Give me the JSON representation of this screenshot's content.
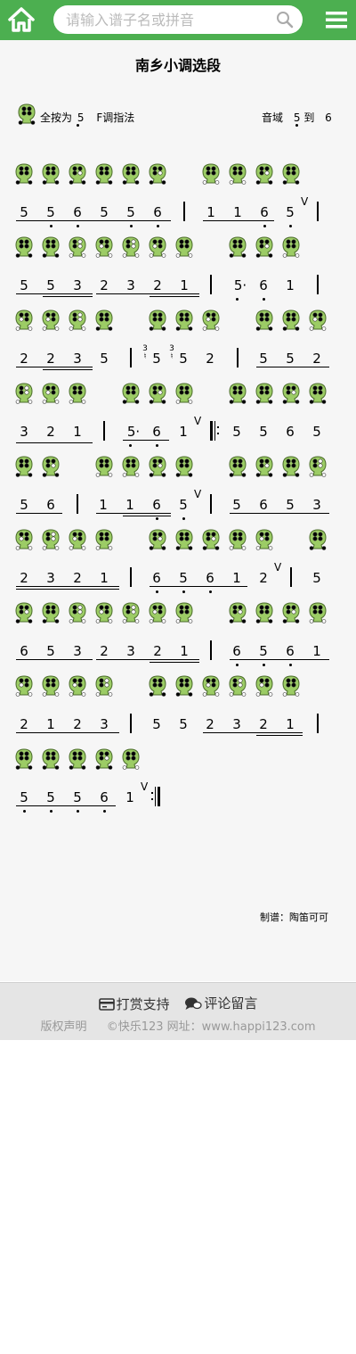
{
  "header": {
    "search_placeholder": "请输入谱子名或拼音"
  },
  "score": {
    "title": "南乡小调选段",
    "fingering_label": "全按为",
    "fingering_note": "5",
    "key_label": "F调指法",
    "range_label": "音域",
    "range_low": "5",
    "range_to": "到",
    "range_high": "6",
    "credit": "制谱：陶笛可可"
  },
  "lines": [
    {
      "o": [
        [
          17,
          "f5"
        ],
        [
          47,
          "f5"
        ],
        [
          77,
          "f6"
        ],
        [
          107,
          "f5"
        ],
        [
          137,
          "f5"
        ],
        [
          167,
          "f6"
        ],
        [
          227,
          "f1"
        ],
        [
          257,
          "f1"
        ],
        [
          287,
          "f6"
        ],
        [
          317,
          "f5"
        ]
      ],
      "n": [
        [
          27,
          "5",
          0,
          0
        ],
        [
          57,
          "5",
          -1,
          0
        ],
        [
          87,
          "6",
          -1,
          0
        ],
        [
          117,
          "5",
          0,
          0
        ],
        [
          147,
          "5",
          -1,
          0
        ],
        [
          177,
          "6",
          -1,
          0
        ],
        [
          237,
          "1",
          0,
          0
        ],
        [
          267,
          "1",
          0,
          0
        ],
        [
          297,
          "6",
          -1,
          0
        ],
        [
          326,
          "5",
          -1,
          0
        ]
      ],
      "u": [
        [
          18,
          192,
          1
        ],
        [
          48,
          192,
          1
        ],
        [
          108,
          192,
          1
        ],
        [
          138,
          192,
          1
        ],
        [
          228,
          308,
          1
        ],
        [
          258,
          308,
          1
        ]
      ],
      "b": [
        206,
        356
      ],
      "br": [
        338
      ]
    },
    {
      "o": [
        [
          17,
          "f5"
        ],
        [
          47,
          "f5"
        ],
        [
          77,
          "f3"
        ],
        [
          107,
          "f2"
        ],
        [
          137,
          "f3"
        ],
        [
          167,
          "f2"
        ],
        [
          197,
          "f1"
        ],
        [
          257,
          "f5"
        ],
        [
          287,
          "f6"
        ],
        [
          317,
          "f1"
        ]
      ],
      "n": [
        [
          27,
          "5",
          0,
          0
        ],
        [
          57,
          "5",
          0,
          0
        ],
        [
          87,
          "3",
          0,
          0
        ],
        [
          117,
          "2",
          0,
          0
        ],
        [
          147,
          "3",
          0,
          0
        ],
        [
          177,
          "2",
          0,
          0
        ],
        [
          207,
          "1",
          0,
          0
        ],
        [
          266,
          "5·",
          -1,
          0
        ],
        [
          296,
          "6",
          -1,
          0
        ],
        [
          326,
          "1",
          0,
          0
        ]
      ],
      "u": [
        [
          18,
          104,
          1
        ],
        [
          48,
          104,
          2
        ],
        [
          108,
          224,
          1
        ],
        [
          168,
          224,
          2
        ]
      ],
      "b": [
        236,
        356
      ],
      "br": []
    },
    {
      "o": [
        [
          17,
          "f2"
        ],
        [
          47,
          "f2"
        ],
        [
          77,
          "f3"
        ],
        [
          107,
          "f5"
        ],
        [
          167,
          "f5"
        ],
        [
          197,
          "f5"
        ],
        [
          227,
          "f2"
        ],
        [
          287,
          "f5"
        ],
        [
          317,
          "f5"
        ],
        [
          347,
          "f2"
        ]
      ],
      "n": [
        [
          27,
          "2",
          0,
          0
        ],
        [
          57,
          "2",
          0,
          0
        ],
        [
          87,
          "3",
          0,
          0
        ],
        [
          117,
          "5",
          0,
          0
        ],
        [
          176,
          "5",
          0,
          0
        ],
        [
          206,
          "5",
          0,
          0
        ],
        [
          236,
          "2",
          0,
          0
        ],
        [
          296,
          "5",
          0,
          0
        ],
        [
          326,
          "5",
          0,
          0
        ],
        [
          356,
          "2",
          0,
          0
        ]
      ],
      "u": [
        [
          18,
          104,
          1
        ],
        [
          48,
          104,
          2
        ],
        [
          288,
          370,
          1
        ]
      ],
      "b": [
        146,
        266
      ],
      "br": [],
      "g": [
        [
          163,
          "3"
        ],
        [
          193,
          "3"
        ]
      ]
    },
    {
      "o": [
        [
          17,
          "f3"
        ],
        [
          47,
          "f2"
        ],
        [
          77,
          "f1"
        ],
        [
          137,
          "f5"
        ],
        [
          167,
          "f6"
        ],
        [
          197,
          "f1"
        ],
        [
          257,
          "f5"
        ],
        [
          287,
          "f5"
        ],
        [
          317,
          "f6"
        ],
        [
          347,
          "f5"
        ]
      ],
      "n": [
        [
          27,
          "3",
          0,
          0
        ],
        [
          57,
          "2",
          0,
          0
        ],
        [
          87,
          "1",
          0,
          0
        ],
        [
          146,
          "5·",
          -1,
          0
        ],
        [
          176,
          "6",
          -1,
          0
        ],
        [
          206,
          "1",
          0,
          0
        ],
        [
          266,
          "5",
          0,
          0
        ],
        [
          296,
          "5",
          0,
          0
        ],
        [
          326,
          "6",
          0,
          0
        ],
        [
          356,
          "5",
          0,
          0
        ]
      ],
      "u": [
        [
          18,
          104,
          2
        ],
        [
          138,
          190,
          1
        ]
      ],
      "b": [
        116,
        236
      ],
      "br": [
        218
      ],
      "rep": [
        236
      ]
    },
    {
      "o": [
        [
          17,
          "f5"
        ],
        [
          47,
          "f6"
        ],
        [
          107,
          "f1"
        ],
        [
          137,
          "f1"
        ],
        [
          167,
          "f6"
        ],
        [
          197,
          "f5"
        ],
        [
          257,
          "f5"
        ],
        [
          287,
          "f6"
        ],
        [
          317,
          "f5"
        ],
        [
          347,
          "f3"
        ]
      ],
      "n": [
        [
          27,
          "5",
          0,
          0
        ],
        [
          57,
          "6",
          0,
          0
        ],
        [
          116,
          "1",
          0,
          0
        ],
        [
          146,
          "1",
          0,
          0
        ],
        [
          176,
          "6",
          -1,
          0
        ],
        [
          206,
          "5",
          -1,
          0
        ],
        [
          266,
          "5",
          0,
          0
        ],
        [
          296,
          "6",
          0,
          0
        ],
        [
          326,
          "5",
          0,
          0
        ],
        [
          356,
          "3",
          0,
          0
        ]
      ],
      "u": [
        [
          18,
          70,
          1
        ],
        [
          108,
          192,
          1
        ],
        [
          138,
          192,
          2
        ],
        [
          258,
          370,
          1
        ]
      ],
      "b": [
        86,
        236
      ],
      "br": [
        218
      ]
    },
    {
      "o": [
        [
          17,
          "f2"
        ],
        [
          47,
          "f3"
        ],
        [
          77,
          "f2"
        ],
        [
          107,
          "f1"
        ],
        [
          167,
          "f6"
        ],
        [
          197,
          "f5"
        ],
        [
          227,
          "f6"
        ],
        [
          257,
          "f1"
        ],
        [
          287,
          "f2"
        ],
        [
          347,
          "f5"
        ]
      ],
      "n": [
        [
          27,
          "2",
          0,
          0
        ],
        [
          57,
          "3",
          0,
          0
        ],
        [
          87,
          "2",
          0,
          0
        ],
        [
          117,
          "1",
          0,
          0
        ],
        [
          176,
          "6",
          -1,
          0
        ],
        [
          206,
          "5",
          -1,
          0
        ],
        [
          236,
          "6",
          -1,
          0
        ],
        [
          266,
          "1",
          0,
          0
        ],
        [
          296,
          "2",
          0,
          0
        ],
        [
          356,
          "5",
          0,
          0
        ]
      ],
      "u": [
        [
          18,
          134,
          1
        ],
        [
          18,
          134,
          2
        ],
        [
          168,
          278,
          1
        ]
      ],
      "b": [
        146,
        326
      ],
      "br": [
        308
      ]
    },
    {
      "o": [
        [
          17,
          "f6"
        ],
        [
          47,
          "f5"
        ],
        [
          77,
          "f3"
        ],
        [
          107,
          "f2"
        ],
        [
          137,
          "f3"
        ],
        [
          167,
          "f2"
        ],
        [
          197,
          "f1"
        ],
        [
          257,
          "f6"
        ],
        [
          287,
          "f5"
        ],
        [
          317,
          "f6"
        ],
        [
          347,
          "f1"
        ]
      ],
      "n": [
        [
          27,
          "6",
          0,
          0
        ],
        [
          57,
          "5",
          0,
          0
        ],
        [
          87,
          "3",
          0,
          0
        ],
        [
          117,
          "2",
          0,
          0
        ],
        [
          147,
          "3",
          0,
          0
        ],
        [
          177,
          "2",
          0,
          0
        ],
        [
          207,
          "1",
          0,
          0
        ],
        [
          266,
          "6",
          -1,
          0
        ],
        [
          296,
          "5",
          -1,
          0
        ],
        [
          326,
          "6",
          -1,
          0
        ],
        [
          356,
          "1",
          0,
          0
        ]
      ],
      "u": [
        [
          18,
          104,
          1
        ],
        [
          108,
          224,
          1
        ],
        [
          168,
          224,
          2
        ],
        [
          258,
          370,
          1
        ]
      ],
      "b": [
        236
      ],
      "br": []
    },
    {
      "o": [
        [
          17,
          "f2"
        ],
        [
          47,
          "f1"
        ],
        [
          77,
          "f2"
        ],
        [
          107,
          "f3"
        ],
        [
          167,
          "f5"
        ],
        [
          197,
          "f5"
        ],
        [
          227,
          "f2"
        ],
        [
          257,
          "f3"
        ],
        [
          287,
          "f2"
        ],
        [
          317,
          "f1"
        ]
      ],
      "n": [
        [
          27,
          "2",
          0,
          0
        ],
        [
          57,
          "1",
          0,
          0
        ],
        [
          87,
          "2",
          0,
          0
        ],
        [
          117,
          "3",
          0,
          0
        ],
        [
          176,
          "5",
          0,
          0
        ],
        [
          206,
          "5",
          0,
          0
        ],
        [
          236,
          "2",
          0,
          0
        ],
        [
          266,
          "3",
          0,
          0
        ],
        [
          296,
          "2",
          0,
          0
        ],
        [
          326,
          "1",
          0,
          0
        ]
      ],
      "u": [
        [
          18,
          134,
          1
        ],
        [
          228,
          340,
          1
        ],
        [
          288,
          340,
          2
        ]
      ],
      "b": [
        146,
        356
      ],
      "br": []
    },
    {
      "o": [
        [
          17,
          "f5"
        ],
        [
          47,
          "f5"
        ],
        [
          77,
          "f5"
        ],
        [
          107,
          "f6"
        ],
        [
          137,
          "f1"
        ]
      ],
      "n": [
        [
          27,
          "5",
          -1,
          0
        ],
        [
          57,
          "5",
          -1,
          0
        ],
        [
          87,
          "5",
          -1,
          0
        ],
        [
          117,
          "6",
          -1,
          0
        ],
        [
          146,
          "1",
          0,
          0
        ]
      ],
      "u": [
        [
          18,
          130,
          1
        ]
      ],
      "b": [],
      "br": [
        158
      ],
      "end": [
        170
      ]
    }
  ],
  "footer": {
    "reward": "打赏支持",
    "comment": "评论留言",
    "copyright": "版权声明",
    "site": "©快乐123 网址：www.happi123.com"
  }
}
